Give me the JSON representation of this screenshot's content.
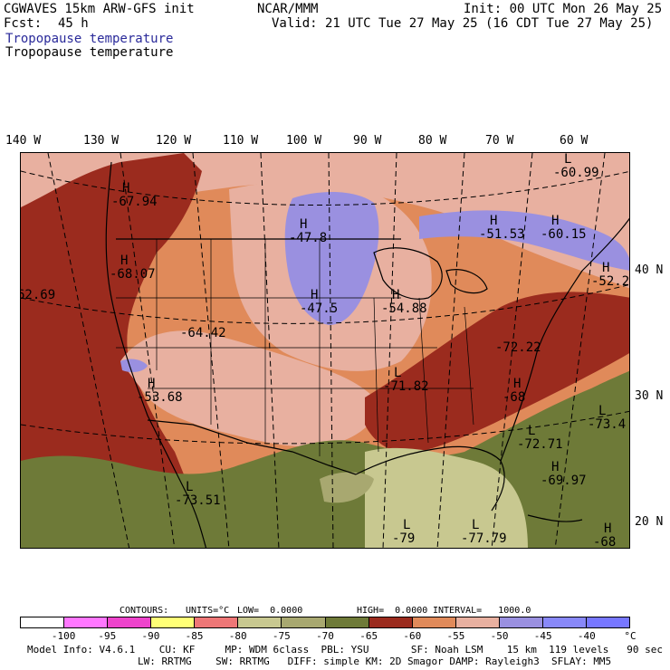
{
  "header": {
    "model": "CGWAVES 15km ARW-GFS init",
    "fcst_label": "Fcst:",
    "fcst_value": "45 h",
    "org": "NCAR/MMM",
    "init": "Init: 00 UTC Mon 26 May 25",
    "valid": "Valid: 21 UTC Tue 27 May 25 (16 CDT Tue 27 May 25)",
    "field_title_1": "Tropopause temperature",
    "field_title_2": "Tropopause temperature"
  },
  "longitude_labels": [
    "140 W",
    "130 W",
    "120 W",
    "110 W",
    "100 W",
    "90 W",
    "80 W",
    "70 W",
    "60 W"
  ],
  "latitude_labels": [
    "40 N",
    "30 N",
    "20 N"
  ],
  "map_labels": [
    {
      "type": "H",
      "value": "-67.94"
    },
    {
      "type": "H",
      "value": "-68.07"
    },
    {
      "type": "",
      "value": "62.69"
    },
    {
      "type": "H",
      "value": "-47.8"
    },
    {
      "type": "H",
      "value": "-47.5"
    },
    {
      "type": "H",
      "value": "-51.53"
    },
    {
      "type": "H",
      "value": "-60.15"
    },
    {
      "type": "L",
      "value": "-60.99"
    },
    {
      "type": "H",
      "value": "-52.2"
    },
    {
      "type": "H",
      "value": "-54.88"
    },
    {
      "type": "",
      "value": "-64.42"
    },
    {
      "type": "H",
      "value": "-53.68"
    },
    {
      "type": "L",
      "value": "-71.82"
    },
    {
      "type": "",
      "value": "-72.22"
    },
    {
      "type": "H",
      "value": "-68"
    },
    {
      "type": "L",
      "value": "-73.4"
    },
    {
      "type": "L",
      "value": "-72.71"
    },
    {
      "type": "H",
      "value": "-69.97"
    },
    {
      "type": "L",
      "value": "-73.51"
    },
    {
      "type": "L",
      "value": "-79"
    },
    {
      "type": "L",
      "value": "-77.79"
    },
    {
      "type": "H",
      "value": "-68"
    }
  ],
  "contours": {
    "label": "CONTOURS:",
    "units": "UNITS=°C",
    "low": "LOW=  0.0000",
    "high": "HIGH=  0.0000",
    "interval": "INTERVAL=   1000.0"
  },
  "colorbar": {
    "colors": [
      "#ffffff",
      "#ff77ff",
      "#ee44cc",
      "#ffff77",
      "#ee7777",
      "#c8c890",
      "#a8a870",
      "#6e7a38",
      "#9b2b1e",
      "#e08a5a",
      "#e8b0a0",
      "#9a90e0",
      "#8888f8",
      "#7777ff"
    ],
    "ticks": [
      "-100",
      "-95",
      "-90",
      "-85",
      "-80",
      "-75",
      "-70",
      "-65",
      "-60",
      "-55",
      "-50",
      "-45",
      "-40",
      "°C"
    ]
  },
  "footer": {
    "line1": "Model Info: V4.6.1    CU: KF     MP: WDM 6class  PBL: YSU       SF: Noah LSM    15 km  119 levels   90 sec",
    "line2": "LW: RRTMG    SW: RRTMG   DIFF: simple KM: 2D Smagor DAMP: Rayleigh3  SFLAY: MM5"
  }
}
